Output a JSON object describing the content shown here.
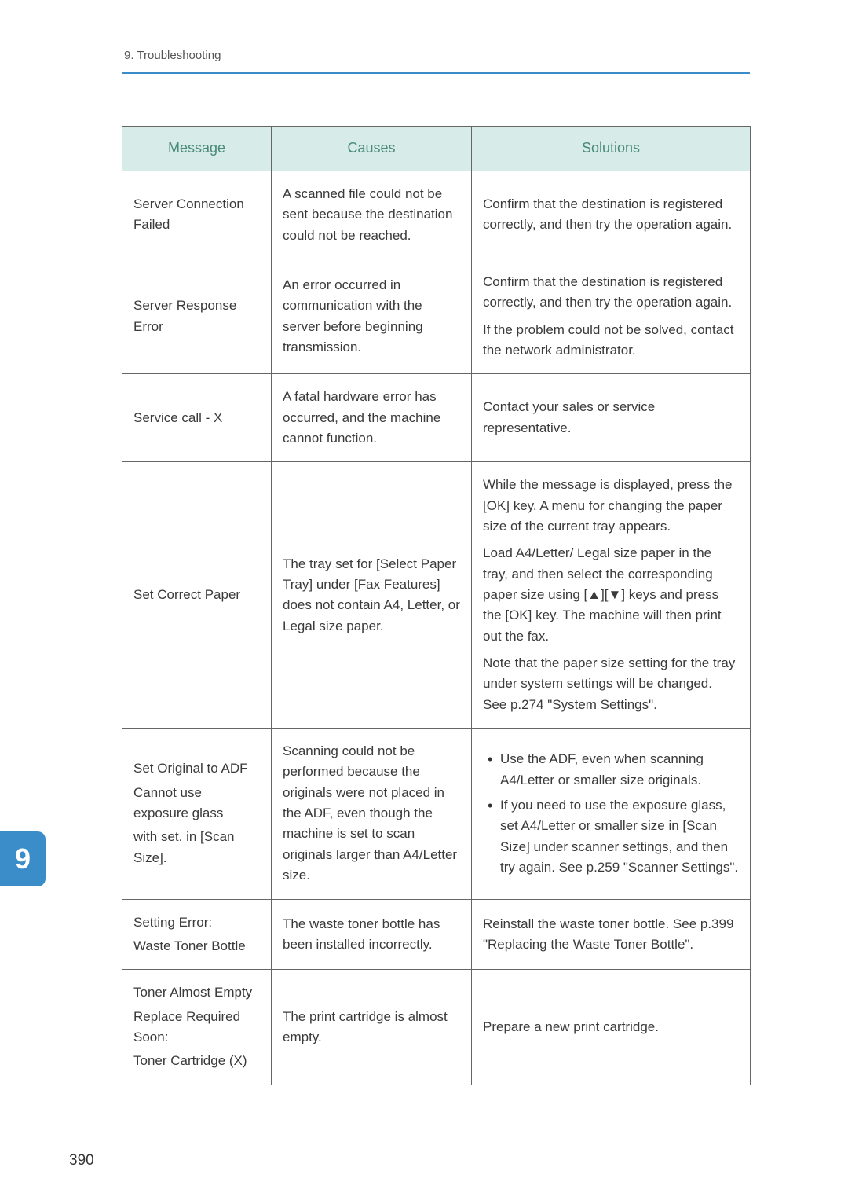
{
  "header": {
    "breadcrumb": "9. Troubleshooting"
  },
  "sideTab": {
    "number": "9"
  },
  "pageNumber": "390",
  "table": {
    "header_bg": "#d7ece9",
    "header_color": "#4a8a7a",
    "border_color": "#666666",
    "columns": [
      "Message",
      "Causes",
      "Solutions"
    ],
    "rows": [
      {
        "message": "Server Connection Failed",
        "cause": "A scanned file could not be sent because the destination could not be reached.",
        "solutions": [
          {
            "kind": "para",
            "text": "Confirm that the destination is registered correctly, and then try the operation again."
          }
        ]
      },
      {
        "message": "Server Response Error",
        "cause": "An error occurred in communication with the server before beginning transmission.",
        "solutions": [
          {
            "kind": "para",
            "text": "Confirm that the destination is registered correctly, and then try the operation again."
          },
          {
            "kind": "para",
            "text": "If the problem could not be solved, contact the network administrator."
          }
        ]
      },
      {
        "message": "Service call - X",
        "cause": "A fatal hardware error has occurred, and the machine cannot function.",
        "solutions": [
          {
            "kind": "para",
            "text": "Contact your sales or service representative."
          }
        ]
      },
      {
        "message": "Set Correct Paper",
        "cause": "The tray set for [Select Paper Tray] under [Fax Features] does not contain A4, Letter, or Legal size paper.",
        "solutions": [
          {
            "kind": "para",
            "text": "While the message is displayed, press the [OK] key. A menu for changing the paper size of the current tray appears."
          },
          {
            "kind": "para",
            "text": "Load A4/Letter/ Legal size paper in the tray, and then select the corresponding paper size using [▲][▼] keys and press the [OK] key. The machine will then print out the fax."
          },
          {
            "kind": "para",
            "text": "Note that the paper size setting for the tray under system settings will be changed. See p.274 \"System Settings\"."
          }
        ]
      },
      {
        "message": "Set Original to ADF\nCannot use exposure glass\nwith set. in [Scan Size].",
        "cause": "Scanning could not be performed because the originals were not placed in the ADF, even though the machine is set to scan originals larger than A4/Letter size.",
        "solutions": [
          {
            "kind": "bullets",
            "items": [
              "Use the ADF, even when scanning A4/Letter or smaller size originals.",
              "If you need to use the exposure glass, set A4/Letter or smaller size in [Scan Size] under scanner settings, and then try again. See p.259 \"Scanner Settings\"."
            ]
          }
        ]
      },
      {
        "message": "Setting Error:\nWaste Toner Bottle",
        "cause": "The waste toner bottle has been installed incorrectly.",
        "solutions": [
          {
            "kind": "para",
            "text": "Reinstall the waste toner bottle. See p.399 \"Replacing the Waste Toner Bottle\"."
          }
        ]
      },
      {
        "message": "Toner Almost Empty\nReplace Required Soon:\nToner Cartridge (X)",
        "cause": "The print cartridge is almost empty.",
        "solutions": [
          {
            "kind": "para",
            "text": "Prepare a new print cartridge."
          }
        ]
      }
    ]
  }
}
